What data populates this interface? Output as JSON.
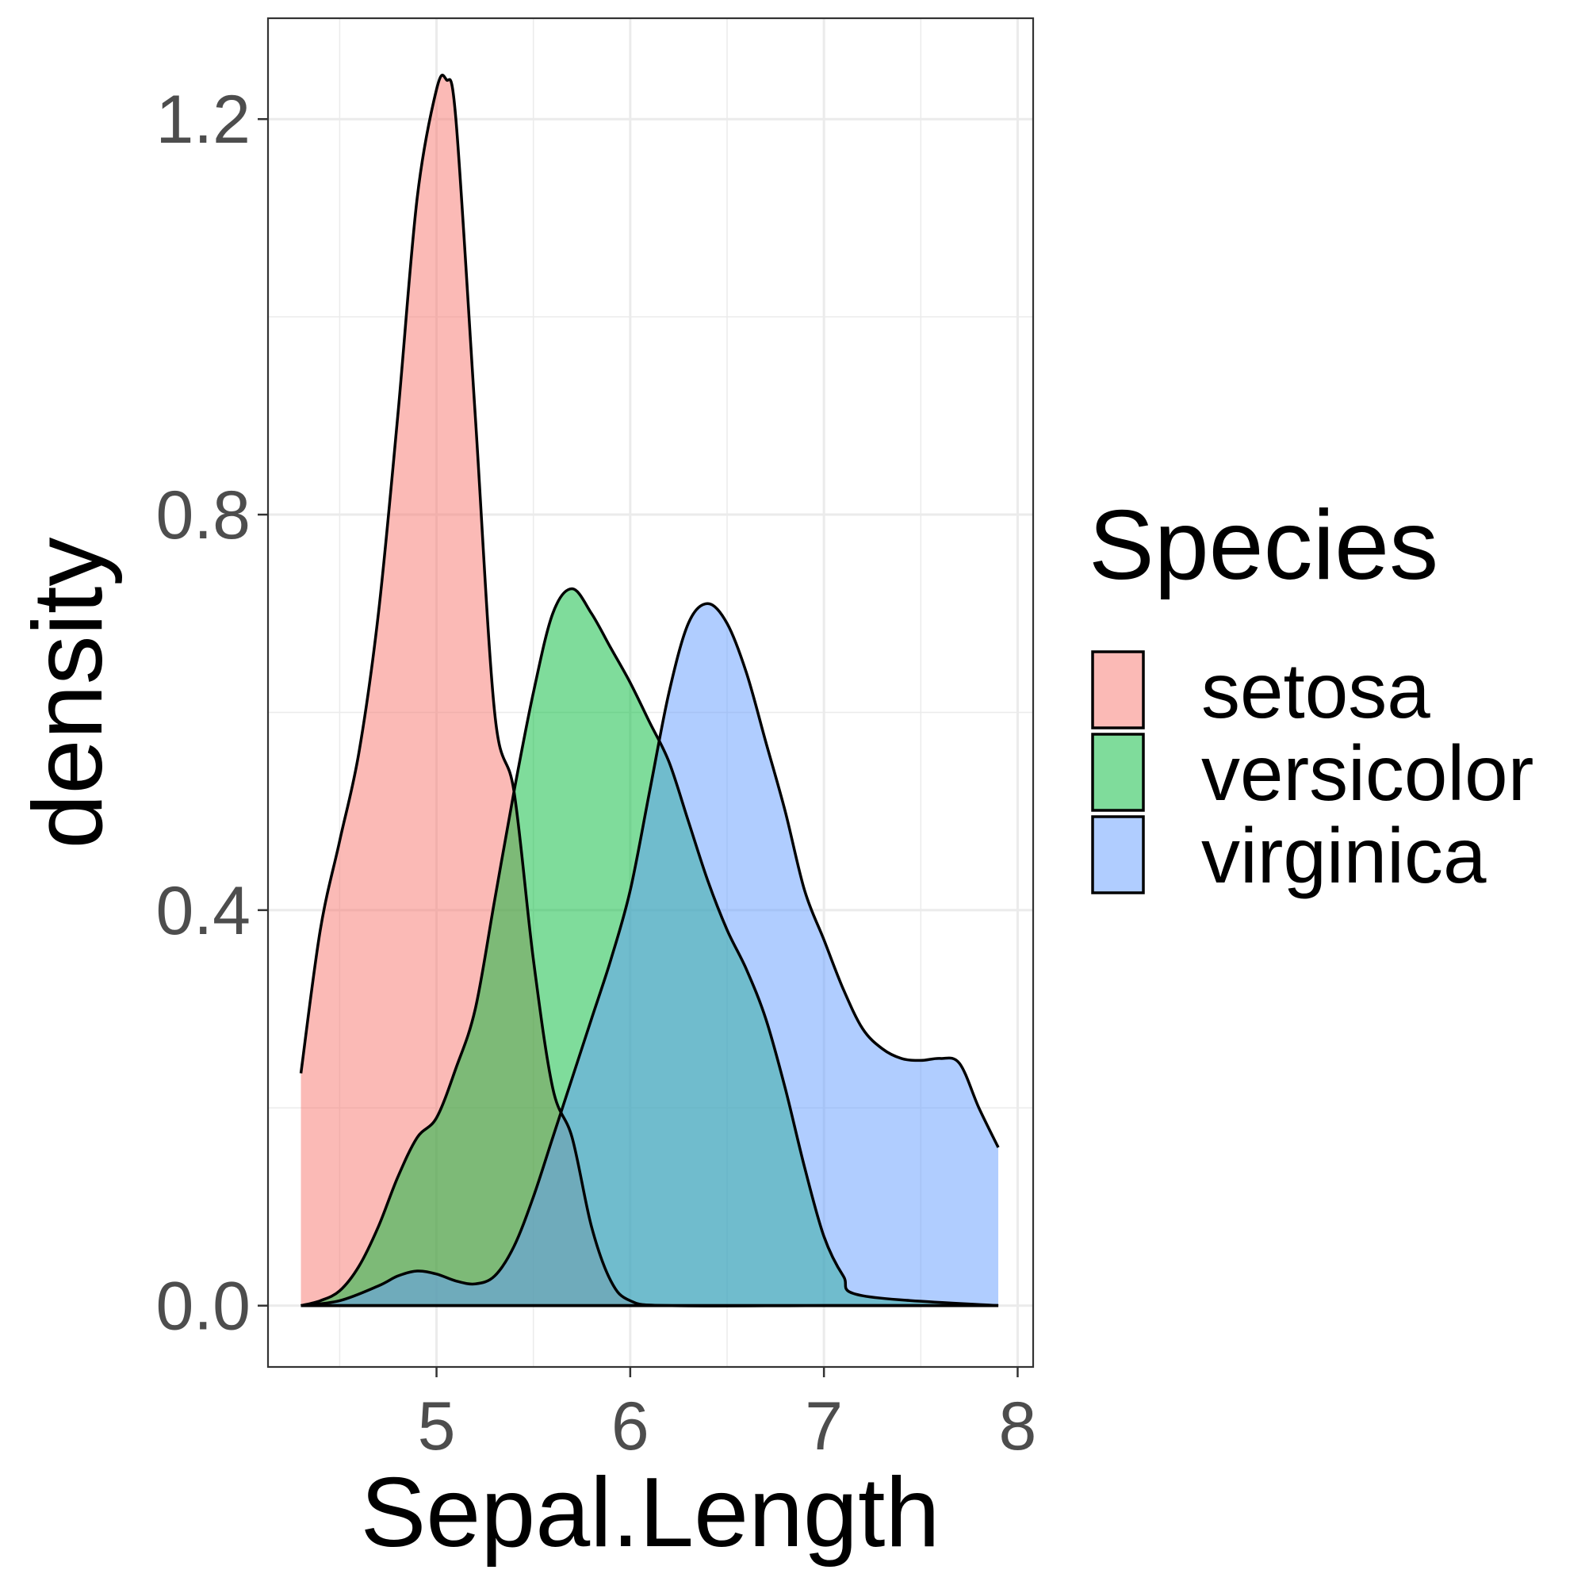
{
  "chart_data": {
    "type": "area",
    "chart_subtype": "density",
    "xlabel": "Sepal.Length",
    "ylabel": "density",
    "xlim": [
      4.13,
      8.08
    ],
    "ylim": [
      -0.062,
      1.302
    ],
    "xticks": [
      5,
      6,
      7,
      8
    ],
    "yticks": [
      0.0,
      0.4,
      0.8,
      1.2
    ],
    "ytick_labels": [
      "0.0",
      "0.4",
      "0.8",
      "1.2"
    ],
    "grid": true,
    "legend": {
      "title": "Species",
      "position": "right"
    },
    "series": [
      {
        "name": "setosa",
        "color": "#F8766D",
        "x": [
          4.3,
          4.4,
          4.5,
          4.6,
          4.7,
          4.8,
          4.9,
          5.0,
          5.05,
          5.1,
          5.2,
          5.3,
          5.4,
          5.5,
          5.6,
          5.7,
          5.8,
          5.9,
          6.0,
          6.2,
          7.0,
          7.9
        ],
        "y": [
          0.235,
          0.38,
          0.47,
          0.56,
          0.7,
          0.9,
          1.12,
          1.23,
          1.24,
          1.2,
          0.9,
          0.6,
          0.52,
          0.35,
          0.22,
          0.17,
          0.08,
          0.025,
          0.005,
          0.0,
          0.0,
          0.0
        ]
      },
      {
        "name": "versicolor",
        "color": "#00BA38",
        "x": [
          4.3,
          4.4,
          4.5,
          4.6,
          4.7,
          4.8,
          4.9,
          5.0,
          5.1,
          5.2,
          5.3,
          5.4,
          5.5,
          5.6,
          5.7,
          5.8,
          5.9,
          6.0,
          6.1,
          6.2,
          6.3,
          6.4,
          6.5,
          6.6,
          6.7,
          6.8,
          6.9,
          7.0,
          7.1,
          7.2,
          7.9
        ],
        "y": [
          0.0,
          0.005,
          0.015,
          0.04,
          0.08,
          0.13,
          0.17,
          0.19,
          0.24,
          0.3,
          0.41,
          0.52,
          0.62,
          0.7,
          0.725,
          0.7,
          0.665,
          0.63,
          0.59,
          0.55,
          0.49,
          0.43,
          0.38,
          0.34,
          0.29,
          0.22,
          0.14,
          0.07,
          0.03,
          0.01,
          0.0
        ]
      },
      {
        "name": "virginica",
        "color": "#619CFF",
        "x": [
          4.3,
          4.5,
          4.7,
          4.8,
          4.9,
          5.0,
          5.1,
          5.2,
          5.3,
          5.4,
          5.5,
          5.6,
          5.7,
          5.8,
          5.9,
          6.0,
          6.1,
          6.2,
          6.3,
          6.4,
          6.5,
          6.6,
          6.7,
          6.8,
          6.9,
          7.0,
          7.1,
          7.2,
          7.3,
          7.4,
          7.5,
          7.6,
          7.7,
          7.8,
          7.9
        ],
        "y": [
          0.0,
          0.005,
          0.02,
          0.03,
          0.035,
          0.032,
          0.025,
          0.022,
          0.03,
          0.06,
          0.11,
          0.17,
          0.23,
          0.29,
          0.35,
          0.42,
          0.52,
          0.62,
          0.69,
          0.71,
          0.69,
          0.64,
          0.57,
          0.5,
          0.42,
          0.37,
          0.32,
          0.28,
          0.26,
          0.25,
          0.248,
          0.25,
          0.245,
          0.2,
          0.16
        ]
      }
    ]
  }
}
